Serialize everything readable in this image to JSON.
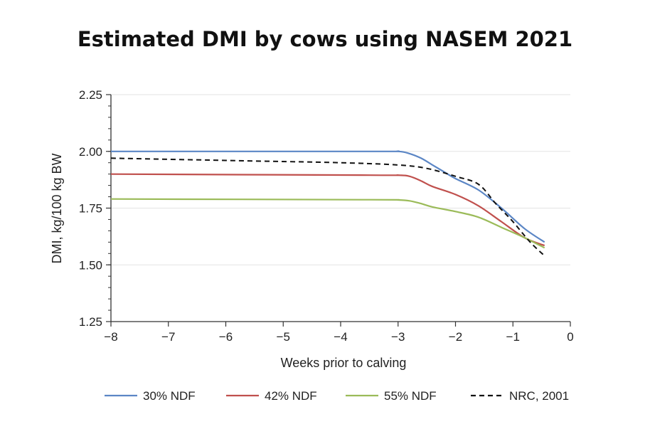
{
  "chart_data": {
    "type": "line",
    "title": "Estimated DMI by cows using NASEM 2021",
    "xlabel": "Weeks prior to calving",
    "ylabel": "DMI, kg/100 kg BW",
    "xlim": [
      -8,
      0
    ],
    "ylim": [
      1.25,
      2.25
    ],
    "xticks": [
      "-8",
      "-7",
      "-6",
      "-5",
      "-4",
      "-3",
      "-2",
      "-1",
      "0"
    ],
    "yticks": [
      "1.25",
      "1.50",
      "1.75",
      "2.00",
      "2.25"
    ],
    "grid": "horizontal",
    "legend_position": "bottom",
    "series": [
      {
        "name": "30% NDF",
        "color": "#5b86c5",
        "dash": "solid",
        "points": [
          [
            -8,
            2.0
          ],
          [
            -3.5,
            2.0
          ],
          [
            -3.0,
            2.0
          ],
          [
            -2.8,
            1.99
          ],
          [
            -2.6,
            1.97
          ],
          [
            -2.4,
            1.94
          ],
          [
            -2.2,
            1.91
          ],
          [
            -2.0,
            1.88
          ],
          [
            -1.6,
            1.83
          ],
          [
            -1.2,
            1.75
          ],
          [
            -0.8,
            1.66
          ],
          [
            -0.45,
            1.6
          ]
        ]
      },
      {
        "name": "42% NDF",
        "color": "#c0504d",
        "dash": "solid",
        "points": [
          [
            -8,
            1.9
          ],
          [
            -3.5,
            1.895
          ],
          [
            -3.0,
            1.895
          ],
          [
            -2.8,
            1.89
          ],
          [
            -2.6,
            1.87
          ],
          [
            -2.4,
            1.845
          ],
          [
            -2.0,
            1.81
          ],
          [
            -1.6,
            1.76
          ],
          [
            -1.2,
            1.69
          ],
          [
            -0.8,
            1.62
          ],
          [
            -0.45,
            1.585
          ]
        ]
      },
      {
        "name": "55% NDF",
        "color": "#9bbb59",
        "dash": "solid",
        "points": [
          [
            -8,
            1.79
          ],
          [
            -3.5,
            1.787
          ],
          [
            -3.0,
            1.786
          ],
          [
            -2.8,
            1.782
          ],
          [
            -2.6,
            1.77
          ],
          [
            -2.4,
            1.755
          ],
          [
            -2.0,
            1.735
          ],
          [
            -1.6,
            1.71
          ],
          [
            -1.2,
            1.665
          ],
          [
            -0.8,
            1.62
          ],
          [
            -0.45,
            1.575
          ]
        ]
      },
      {
        "name": "NRC, 2001",
        "color": "#111111",
        "dash": "dashed",
        "points": [
          [
            -8,
            1.97
          ],
          [
            -6,
            1.96
          ],
          [
            -4,
            1.95
          ],
          [
            -3,
            1.94
          ],
          [
            -2.5,
            1.925
          ],
          [
            -2.0,
            1.89
          ],
          [
            -1.6,
            1.855
          ],
          [
            -1.3,
            1.77
          ],
          [
            -1.0,
            1.69
          ],
          [
            -0.7,
            1.6
          ],
          [
            -0.45,
            1.54
          ]
        ]
      }
    ]
  }
}
